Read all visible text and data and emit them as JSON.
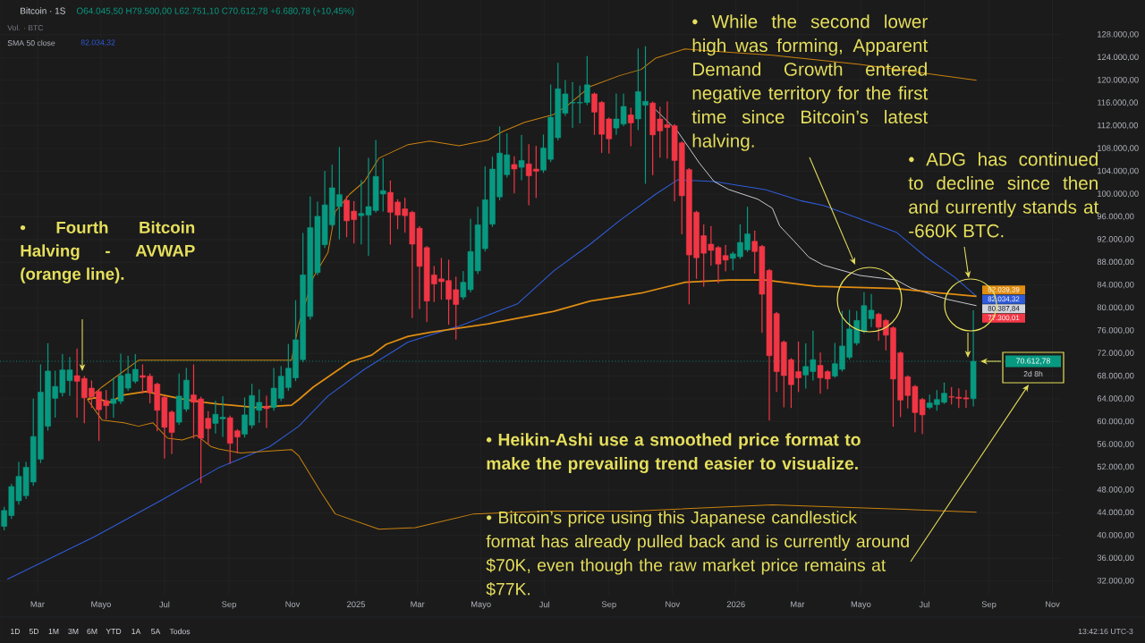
{
  "chart_data": {
    "type": "candlestick",
    "title": "Bitcoin · 1S",
    "subtitle": "O64.045,50 H79.500,00 L62.751,10 C70.612,78 +6.680,78 (+10,45%)",
    "annotations": [
      "• Fourth Bitcoin Halving - AVWAP (orange line).",
      "• While the second lower high was forming, Apparent Demand Growth entered negative territory for the first time since Bitcoin’s latest halving.",
      "• ADG has continued to decline since then and currently stands at -660K BTC.",
      "• Heikin-Ashi use a smoothed price format to make the prevailing trend easier to visualize.",
      "• Bitcoin’s price using this Japanese candlestick format has already pulled back and is currently around $70K, even though the raw market price remains at $77K.",
      "Vol. · BTC",
      "SMA 50 close",
      "82.034,32",
      "1D",
      "5D",
      "1M",
      "3M",
      "6M",
      "YTD",
      "1A",
      "5A",
      "Todos",
      "13:42:16 UTC-3",
      "77.300,01",
      "2d 8h"
    ],
    "x": [
      "2024-01-29",
      "2024-02-05",
      "2024-02-12",
      "2024-02-19",
      "2024-02-26",
      "2024-03-04",
      "2024-03-11",
      "2024-03-18",
      "2024-03-25",
      "2024-04-01",
      "2024-04-08",
      "2024-04-15",
      "2024-04-22",
      "2024-04-29",
      "2024-05-06",
      "2024-05-13",
      "2024-05-20",
      "2024-05-27",
      "2024-06-03",
      "2024-06-10",
      "2024-06-17",
      "2024-06-24",
      "2024-07-01",
      "2024-07-08",
      "2024-07-15",
      "2024-07-22",
      "2024-07-29",
      "2024-08-05",
      "2024-08-12",
      "2024-08-19",
      "2024-08-26",
      "2024-09-02",
      "2024-09-09",
      "2024-09-16",
      "2024-09-23",
      "2024-09-30",
      "2024-10-07",
      "2024-10-14",
      "2024-10-21",
      "2024-10-28",
      "2024-11-04",
      "2024-11-11",
      "2024-11-18",
      "2024-11-25",
      "2024-12-02",
      "2024-12-09",
      "2024-12-16",
      "2024-12-23",
      "2024-12-30",
      "2025-01-06",
      "2025-01-13",
      "2025-01-20",
      "2025-01-27",
      "2025-02-03",
      "2025-02-10",
      "2025-02-17",
      "2025-02-24",
      "2025-03-03",
      "2025-03-10",
      "2025-03-17",
      "2025-03-24",
      "2025-03-31",
      "2025-04-07",
      "2025-04-14",
      "2025-04-21",
      "2025-04-28",
      "2025-05-05",
      "2025-05-12",
      "2025-05-19",
      "2025-05-26",
      "2025-06-02",
      "2025-06-09",
      "2025-06-16",
      "2025-06-23",
      "2025-06-30",
      "2025-07-07",
      "2025-07-14",
      "2025-07-21",
      "2025-07-28",
      "2025-08-04",
      "2025-08-11",
      "2025-08-18",
      "2025-08-25",
      "2025-09-01",
      "2025-09-08",
      "2025-09-15",
      "2025-09-22",
      "2025-09-29",
      "2025-10-06",
      "2025-10-13",
      "2025-10-20",
      "2025-10-27",
      "2025-11-03",
      "2025-11-10",
      "2025-11-17",
      "2025-11-24",
      "2025-12-01",
      "2025-12-08",
      "2025-12-15",
      "2025-12-22",
      "2025-12-29",
      "2026-01-05",
      "2026-01-12",
      "2026-01-19",
      "2026-01-26",
      "2026-02-02",
      "2026-02-09",
      "2026-02-16",
      "2026-02-23",
      "2026-03-02",
      "2026-03-09",
      "2026-03-16",
      "2026-03-23",
      "2026-03-30",
      "2026-04-06",
      "2026-04-13",
      "2026-04-20",
      "2026-04-27",
      "2026-05-04",
      "2026-05-11",
      "2026-05-18",
      "2026-05-25",
      "2026-06-01",
      "2026-06-08",
      "2026-06-15",
      "2026-06-22",
      "2026-06-29",
      "2026-07-06",
      "2026-07-13",
      "2026-07-20",
      "2026-07-27",
      "2026-08-03",
      "2026-08-10",
      "2026-08-17"
    ],
    "ohlc": [
      [
        41600,
        45000,
        41000,
        44400
      ],
      [
        43500,
        49000,
        43000,
        48600
      ],
      [
        46100,
        52900,
        45500,
        50400
      ],
      [
        47000,
        52900,
        46500,
        52000
      ],
      [
        49400,
        64000,
        48800,
        57400
      ],
      [
        53400,
        70000,
        52800,
        65200
      ],
      [
        59200,
        73700,
        58500,
        68900
      ],
      [
        64100,
        68900,
        60800,
        66200
      ],
      [
        65100,
        71800,
        64500,
        69100
      ],
      [
        67200,
        71300,
        64600,
        69100
      ],
      [
        68100,
        72800,
        60800,
        67100
      ],
      [
        67600,
        68000,
        59800,
        64200
      ],
      [
        65900,
        67200,
        62500,
        64400
      ],
      [
        65300,
        65600,
        56700,
        62100
      ],
      [
        63700,
        65500,
        60500,
        62800
      ],
      [
        63200,
        67600,
        60800,
        64000
      ],
      [
        63600,
        71900,
        63200,
        68100
      ],
      [
        65900,
        71500,
        65500,
        68400
      ],
      [
        67100,
        71800,
        66800,
        69200
      ],
      [
        68100,
        70000,
        65000,
        67800
      ],
      [
        68000,
        68400,
        63300,
        65100
      ],
      [
        66600,
        66800,
        58400,
        62000
      ],
      [
        64300,
        64500,
        53600,
        59000
      ],
      [
        61700,
        61900,
        54400,
        58100
      ],
      [
        59900,
        68400,
        59500,
        64500
      ],
      [
        62200,
        69400,
        61800,
        67300
      ],
      [
        64700,
        70000,
        57100,
        63400
      ],
      [
        64000,
        64300,
        49300,
        57100
      ],
      [
        60600,
        61800,
        56100,
        58800
      ],
      [
        59700,
        63600,
        58000,
        61300
      ],
      [
        60500,
        64400,
        57400,
        60800
      ],
      [
        60700,
        61000,
        52700,
        56200
      ],
      [
        58400,
        58600,
        54500,
        57300
      ],
      [
        57800,
        64200,
        57300,
        61200
      ],
      [
        59400,
        66600,
        58900,
        64600
      ],
      [
        62000,
        65600,
        59900,
        63400
      ],
      [
        62700,
        64500,
        59000,
        62300
      ],
      [
        62500,
        69400,
        62000,
        65900
      ],
      [
        64100,
        69700,
        63700,
        68000
      ],
      [
        66000,
        73600,
        65500,
        69400
      ],
      [
        67700,
        81300,
        67200,
        74400
      ],
      [
        70900,
        93100,
        70500,
        85800
      ],
      [
        78500,
        99500,
        78000,
        94100
      ],
      [
        86200,
        98600,
        85800,
        96100
      ],
      [
        91100,
        104000,
        90600,
        98100
      ],
      [
        94600,
        105100,
        94200,
        101100
      ],
      [
        97800,
        108200,
        92100,
        99900
      ],
      [
        98900,
        99600,
        92500,
        95300
      ],
      [
        97000,
        98700,
        91400,
        95500
      ],
      [
        96200,
        102400,
        91200,
        96600
      ],
      [
        96300,
        106300,
        89200,
        97800
      ],
      [
        97100,
        109400,
        96800,
        103100
      ],
      [
        100000,
        106200,
        97000,
        100600
      ],
      [
        100300,
        102300,
        91200,
        96800
      ],
      [
        98600,
        99000,
        93900,
        96300
      ],
      [
        97400,
        99300,
        93300,
        96200
      ],
      [
        96800,
        97000,
        78300,
        91200
      ],
      [
        94000,
        94300,
        79900,
        87300
      ],
      [
        90600,
        90800,
        77600,
        81200
      ],
      [
        85800,
        87300,
        81100,
        84200
      ],
      [
        85100,
        88700,
        81500,
        84600
      ],
      [
        84800,
        88400,
        77100,
        81500
      ],
      [
        83200,
        85400,
        74500,
        80600
      ],
      [
        81900,
        86400,
        81500,
        84500
      ],
      [
        83200,
        95600,
        82800,
        89900
      ],
      [
        86500,
        97700,
        86000,
        94600
      ],
      [
        90400,
        104800,
        90000,
        99000
      ],
      [
        94700,
        106500,
        94300,
        104400
      ],
      [
        99500,
        111800,
        99000,
        107200
      ],
      [
        103400,
        110600,
        103000,
        106900
      ],
      [
        105200,
        106600,
        100200,
        104400
      ],
      [
        104700,
        110300,
        102500,
        105900
      ],
      [
        105300,
        108700,
        98100,
        103200
      ],
      [
        104400,
        108400,
        99400,
        104000
      ],
      [
        104200,
        110400,
        103800,
        108100
      ],
      [
        106100,
        119200,
        105700,
        113500
      ],
      [
        109900,
        123000,
        109500,
        118500
      ],
      [
        114200,
        120000,
        113800,
        117600
      ],
      [
        116000,
        119600,
        111700,
        116100
      ],
      [
        116000,
        119000,
        112500,
        116100
      ],
      [
        116100,
        124200,
        115700,
        119200
      ],
      [
        117600,
        117800,
        110500,
        114400
      ],
      [
        116100,
        116300,
        107300,
        110500
      ],
      [
        113200,
        113400,
        107200,
        109700
      ],
      [
        111600,
        117600,
        110500,
        113200
      ],
      [
        112300,
        117600,
        112000,
        115400
      ],
      [
        113900,
        115100,
        108500,
        112500
      ],
      [
        113200,
        125500,
        111300,
        118000
      ],
      [
        115600,
        125900,
        101900,
        116300
      ],
      [
        116000,
        116200,
        103400,
        110400
      ],
      [
        113200,
        115300,
        106500,
        111100
      ],
      [
        112200,
        116200,
        106300,
        111700
      ],
      [
        112000,
        112200,
        98800,
        105900
      ],
      [
        109000,
        109200,
        93000,
        99700
      ],
      [
        104300,
        104500,
        80700,
        89300
      ],
      [
        96800,
        97000,
        85200,
        88800
      ],
      [
        92700,
        94600,
        83800,
        89600
      ],
      [
        91200,
        94300,
        87500,
        90100
      ],
      [
        90600,
        90800,
        84400,
        87700
      ],
      [
        89200,
        91000,
        86500,
        88400
      ],
      [
        88700,
        89800,
        86700,
        89500
      ],
      [
        89000,
        94600,
        88700,
        91500
      ],
      [
        90200,
        97700,
        89900,
        93000
      ],
      [
        91700,
        93500,
        86100,
        89900
      ],
      [
        90800,
        91000,
        75700,
        82400
      ],
      [
        86600,
        86800,
        60300,
        71600
      ],
      [
        79000,
        79200,
        65300,
        68800
      ],
      [
        74000,
        74200,
        62600,
        68100
      ],
      [
        70900,
        71100,
        62500,
        66500
      ],
      [
        68800,
        74000,
        65300,
        67700
      ],
      [
        68200,
        73700,
        65900,
        69700
      ],
      [
        68800,
        75900,
        67300,
        70900
      ],
      [
        69900,
        72100,
        65000,
        67700
      ],
      [
        68800,
        69000,
        65800,
        67500
      ],
      [
        68000,
        73800,
        67800,
        70200
      ],
      [
        69200,
        79400,
        68900,
        73300
      ],
      [
        71300,
        79600,
        71000,
        76300
      ],
      [
        73800,
        79400,
        73500,
        77800
      ],
      [
        75900,
        82700,
        75600,
        80400
      ],
      [
        78100,
        82400,
        76700,
        79600
      ],
      [
        78900,
        79100,
        74300,
        76600
      ],
      [
        77800,
        78000,
        72600,
        75200
      ],
      [
        76500,
        76700,
        59200,
        67500
      ],
      [
        72100,
        72300,
        60900,
        63800
      ],
      [
        67900,
        68100,
        62400,
        64600
      ],
      [
        66200,
        66400,
        58200,
        61600
      ],
      [
        63900,
        64100,
        57900,
        61200
      ],
      [
        62500,
        64700,
        62300,
        63300
      ],
      [
        63000,
        65500,
        62000,
        63900
      ],
      [
        63400,
        66800,
        63200,
        65000
      ],
      [
        64400,
        66000,
        63100,
        64300
      ],
      [
        64300,
        65800,
        62500,
        64100
      ],
      [
        64200,
        65500,
        62500,
        64000
      ],
      [
        64045.5,
        79500,
        62751.1,
        70612.78
      ]
    ],
    "colors": [
      "#089981",
      "#089981",
      "#089981",
      "#089981",
      "#089981",
      "#089981",
      "#089981",
      "#089981",
      "#089981",
      "#089981",
      "#f23645",
      "#f23645",
      "#f23645",
      "#f23645",
      "#f23645",
      "#089981",
      "#089981",
      "#089981",
      "#089981",
      "#f23645",
      "#f23645",
      "#f23645",
      "#f23645",
      "#f23645",
      "#089981",
      "#089981",
      "#f23645",
      "#f23645",
      "#f23645",
      "#089981",
      "#089981",
      "#f23645",
      "#f23645",
      "#089981",
      "#089981",
      "#089981",
      "#f23645",
      "#089981",
      "#089981",
      "#089981",
      "#089981",
      "#089981",
      "#089981",
      "#089981",
      "#089981",
      "#089981",
      "#089981",
      "#f23645",
      "#f23645",
      "#089981",
      "#089981",
      "#089981",
      "#089981",
      "#f23645",
      "#f23645",
      "#f23645",
      "#f23645",
      "#f23645",
      "#f23645",
      "#f23645",
      "#f23645",
      "#f23645",
      "#f23645",
      "#089981",
      "#089981",
      "#089981",
      "#089981",
      "#089981",
      "#089981",
      "#089981",
      "#f23645",
      "#089981",
      "#f23645",
      "#f23645",
      "#089981",
      "#089981",
      "#089981",
      "#089981",
      "#089981",
      "#089981",
      "#089981",
      "#f23645",
      "#f23645",
      "#f23645",
      "#089981",
      "#089981",
      "#f23645",
      "#089981",
      "#089981",
      "#f23645",
      "#f23645",
      "#f23645",
      "#f23645",
      "#f23645",
      "#f23645",
      "#f23645",
      "#f23645",
      "#f23645",
      "#f23645",
      "#f23645",
      "#089981",
      "#089981",
      "#089981",
      "#f23645",
      "#f23645",
      "#f23645",
      "#f23645",
      "#f23645",
      "#f23645",
      "#f23645",
      "#089981",
      "#089981",
      "#f23645",
      "#f23645",
      "#089981",
      "#089981",
      "#089981",
      "#089981",
      "#089981",
      "#089981",
      "#f23645",
      "#f23645",
      "#f23645",
      "#f23645",
      "#f23645",
      "#f23645",
      "#f23645",
      "#089981",
      "#089981",
      "#089981",
      "#f23645",
      "#f23645",
      "#f23645",
      "#089981"
    ],
    "series": [
      {
        "type": "line",
        "color": "#2f5bd8",
        "x": [
          "2024-02-01",
          "2024-04-25",
          "2024-06-27",
          "2024-08-22",
          "2024-10-10",
          "2024-11-07",
          "2024-12-05",
          "2025-01-09",
          "2025-02-20",
          "2025-04-10",
          "2025-06-05",
          "2025-07-10",
          "2025-08-14",
          "2025-09-11",
          "2025-10-16",
          "2025-11-06",
          "2025-12-11",
          "2026-01-29",
          "2026-03-05",
          "2026-03-26",
          "2026-06-04",
          "2026-07-02",
          "2026-07-30",
          "2026-08-20"
        ],
        "values": [
          32300,
          39800,
          46100,
          51900,
          55600,
          59200,
          64500,
          69200,
          74000,
          76800,
          80700,
          86500,
          91200,
          95300,
          100000,
          102500,
          102200,
          100800,
          98800,
          98000,
          93300,
          89000,
          85400,
          82034.32
        ],
        "value_labels": [
          null,
          null,
          null,
          null,
          null,
          null,
          null,
          null,
          null,
          null,
          null,
          null,
          null,
          null,
          null,
          null,
          null,
          null,
          null,
          null,
          null,
          null,
          null,
          "82.034,32"
        ]
      },
      {
        "type": "line",
        "color": "#d1d4dc",
        "x": [
          "2025-10-16",
          "2025-11-06",
          "2025-11-27",
          "2025-12-11",
          "2025-12-25",
          "2026-01-22",
          "2026-02-05",
          "2026-02-12",
          "2026-02-26",
          "2026-03-12",
          "2026-03-26",
          "2026-04-30",
          "2026-06-04",
          "2026-06-18",
          "2026-07-23",
          "2026-08-20"
        ],
        "values": [
          114800,
          111000,
          105400,
          102200,
          100800,
          99100,
          97500,
          94400,
          91700,
          88900,
          87500,
          85700,
          84900,
          83500,
          81500,
          80387.84
        ],
        "value_labels": [
          null,
          null,
          null,
          null,
          null,
          null,
          null,
          null,
          null,
          null,
          null,
          null,
          null,
          null,
          null,
          "80.387,84"
        ]
      },
      {
        "type": "line",
        "color": "#c9820f",
        "x": [
          "2024-04-18",
          "2024-05-02",
          "2024-06-06",
          "2024-07-18",
          "2024-08-22",
          "2024-10-31",
          "2024-11-07",
          "2024-11-21",
          "2024-12-05",
          "2024-12-12",
          "2024-12-26",
          "2025-01-09",
          "2025-01-23",
          "2025-02-20",
          "2025-03-13",
          "2025-04-10",
          "2025-05-08",
          "2025-05-22",
          "2025-06-12",
          "2025-07-10",
          "2025-07-24",
          "2025-08-14",
          "2025-09-11",
          "2025-10-02",
          "2025-10-16",
          "2025-11-13",
          "2025-12-04",
          "2026-02-05",
          "2026-04-30",
          "2026-08-20"
        ],
        "values": [
          63900,
          66100,
          70800,
          70800,
          70800,
          70800,
          77100,
          85400,
          89700,
          96900,
          100000,
          102200,
          106300,
          108700,
          109300,
          108500,
          109500,
          111000,
          112600,
          114000,
          115700,
          118900,
          120800,
          121900,
          123900,
          125500,
          125200,
          124400,
          122800,
          120000
        ]
      },
      {
        "type": "line",
        "color": "#e08d12",
        "x": [
          "2024-04-18",
          "2024-04-25",
          "2024-05-09",
          "2024-05-23",
          "2024-06-13",
          "2024-07-18",
          "2024-08-08",
          "2024-08-22",
          "2024-09-26",
          "2024-10-31",
          "2024-11-07",
          "2024-11-21",
          "2024-12-26",
          "2025-01-16",
          "2025-01-30",
          "2025-02-20",
          "2025-03-13",
          "2025-05-08",
          "2025-07-10",
          "2025-08-14",
          "2025-09-11",
          "2025-10-02",
          "2025-11-13",
          "2025-12-25",
          "2026-01-29",
          "2026-03-19",
          "2026-06-04",
          "2026-07-16",
          "2026-08-20"
        ],
        "values": [
          63900,
          64200,
          63400,
          64700,
          65300,
          64000,
          63400,
          63100,
          62500,
          62900,
          63900,
          66100,
          70500,
          71700,
          73600,
          75000,
          75700,
          77200,
          79400,
          81200,
          82000,
          82600,
          84500,
          84900,
          84900,
          83800,
          83400,
          82600,
          82039.39
        ],
        "value_labels": [
          null,
          null,
          null,
          null,
          null,
          null,
          null,
          null,
          null,
          null,
          null,
          null,
          null,
          null,
          null,
          null,
          null,
          null,
          null,
          null,
          null,
          null,
          null,
          null,
          null,
          null,
          null,
          null,
          "82.039,39"
        ]
      },
      {
        "type": "line",
        "color": "#c9820f",
        "x": [
          "2024-04-18",
          "2024-05-02",
          "2024-05-23",
          "2024-06-06",
          "2024-06-20",
          "2024-07-04",
          "2024-07-18",
          "2024-08-01",
          "2024-08-15",
          "2024-08-22",
          "2024-09-12",
          "2024-10-31",
          "2024-11-07",
          "2024-11-28",
          "2024-12-12",
          "2025-01-23",
          "2025-02-27",
          "2025-04-24",
          "2025-07-03",
          "2025-09-25",
          "2026-02-05",
          "2026-06-11",
          "2026-08-20"
        ],
        "values": [
          63900,
          60300,
          59800,
          59200,
          59800,
          57100,
          56800,
          57600,
          55600,
          55200,
          54500,
          55100,
          54000,
          47700,
          43800,
          41100,
          41400,
          43800,
          44300,
          44300,
          45400,
          44600,
          44100
        ]
      }
    ],
    "ref_lines": [
      {
        "axis": "y",
        "value": 70612.78,
        "label": "70.612,78",
        "color": "#089981",
        "line_style": "dotted"
      }
    ],
    "xlim": [
      "2024-01-25",
      "2026-11-10"
    ],
    "xticks": [
      {
        "value": "2024-03-01",
        "label": "Mar"
      },
      {
        "value": "2024-05-01",
        "label": "Mayo"
      },
      {
        "value": "2024-07-01",
        "label": "Jul"
      },
      {
        "value": "2024-09-01",
        "label": "Sep"
      },
      {
        "value": "2024-11-01",
        "label": "Nov"
      },
      {
        "value": "2025-01-01",
        "label": "2025"
      },
      {
        "value": "2025-03-01",
        "label": "Mar"
      },
      {
        "value": "2025-05-01",
        "label": "Mayo"
      },
      {
        "value": "2025-07-01",
        "label": "Jul"
      },
      {
        "value": "2025-09-01",
        "label": "Sep"
      },
      {
        "value": "2025-11-01",
        "label": "Nov"
      },
      {
        "value": "2026-01-01",
        "label": "2026"
      },
      {
        "value": "2026-03-01",
        "label": "Mar"
      },
      {
        "value": "2026-05-01",
        "label": "Mayo"
      },
      {
        "value": "2026-07-01",
        "label": "Jul"
      },
      {
        "value": "2026-09-01",
        "label": "Sep"
      },
      {
        "value": "2026-11-01",
        "label": "Nov"
      }
    ],
    "ylim": [
      29600,
      134100
    ],
    "yticks": [
      {
        "value": 32000,
        "label": "32.000,00"
      },
      {
        "value": 36000,
        "label": "36.000,00"
      },
      {
        "value": 40000,
        "label": "40.000,00"
      },
      {
        "value": 44000,
        "label": "44.000,00"
      },
      {
        "value": 48000,
        "label": "48.000,00"
      },
      {
        "value": 52000,
        "label": "52.000,00"
      },
      {
        "value": 56000,
        "label": "56.000,00"
      },
      {
        "value": 60000,
        "label": "60.000,00"
      },
      {
        "value": 64000,
        "label": "64.000,00"
      },
      {
        "value": 68000,
        "label": "68.000,00"
      },
      {
        "value": 72000,
        "label": "72.000,00"
      },
      {
        "value": 76000,
        "label": "76.000,00"
      },
      {
        "value": 80000,
        "label": "80.000,00"
      },
      {
        "value": 84000,
        "label": "84.000,00"
      },
      {
        "value": 88000,
        "label": "88.000,00"
      },
      {
        "value": 92000,
        "label": "92.000,00"
      },
      {
        "value": 96000,
        "label": "96.000,00"
      },
      {
        "value": 100000,
        "label": "100.000,00"
      },
      {
        "value": 104000,
        "label": "104.000,00"
      },
      {
        "value": 108000,
        "label": "108.000,00"
      },
      {
        "value": 112000,
        "label": "112.000,00"
      },
      {
        "value": 116000,
        "label": "116.000,00"
      },
      {
        "value": 120000,
        "label": "120.000,00"
      },
      {
        "value": 124000,
        "label": "124.000,00"
      },
      {
        "value": 128000,
        "label": "128.000,00"
      }
    ],
    "grid": true
  }
}
